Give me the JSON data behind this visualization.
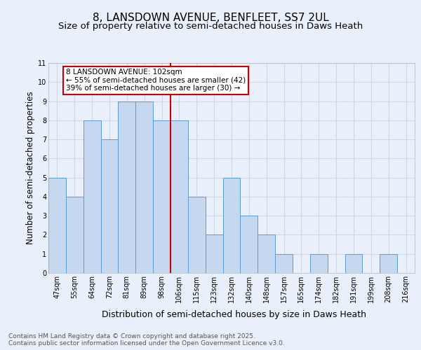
{
  "title_line1": "8, LANSDOWN AVENUE, BENFLEET, SS7 2UL",
  "title_line2": "Size of property relative to semi-detached houses in Daws Heath",
  "xlabel": "Distribution of semi-detached houses by size in Daws Heath",
  "ylabel": "Number of semi-detached properties",
  "categories": [
    "47sqm",
    "55sqm",
    "64sqm",
    "72sqm",
    "81sqm",
    "89sqm",
    "98sqm",
    "106sqm",
    "115sqm",
    "123sqm",
    "132sqm",
    "140sqm",
    "148sqm",
    "157sqm",
    "165sqm",
    "174sqm",
    "182sqm",
    "191sqm",
    "199sqm",
    "208sqm",
    "216sqm"
  ],
  "values": [
    5,
    4,
    8,
    7,
    9,
    9,
    8,
    8,
    4,
    2,
    5,
    3,
    2,
    1,
    0,
    1,
    0,
    1,
    0,
    1,
    0
  ],
  "bar_color": "#c5d8f0",
  "bar_edge_color": "#5b9bd5",
  "red_line_color": "#cc0000",
  "annotation_text": "8 LANSDOWN AVENUE: 102sqm\n← 55% of semi-detached houses are smaller (42)\n39% of semi-detached houses are larger (30) →",
  "annotation_box_color": "#ffffff",
  "annotation_box_edge_color": "#cc0000",
  "ylim": [
    0,
    11
  ],
  "yticks": [
    0,
    1,
    2,
    3,
    4,
    5,
    6,
    7,
    8,
    9,
    10,
    11
  ],
  "background_color": "#eaf0fb",
  "plot_bg_color": "#eaf0fb",
  "grid_color": "#d0d8e8",
  "footer_text": "Contains HM Land Registry data © Crown copyright and database right 2025.\nContains public sector information licensed under the Open Government Licence v3.0.",
  "title_fontsize": 11,
  "subtitle_fontsize": 9.5,
  "axis_label_fontsize": 8.5,
  "tick_fontsize": 7,
  "annotation_fontsize": 7.5,
  "footer_fontsize": 6.5
}
